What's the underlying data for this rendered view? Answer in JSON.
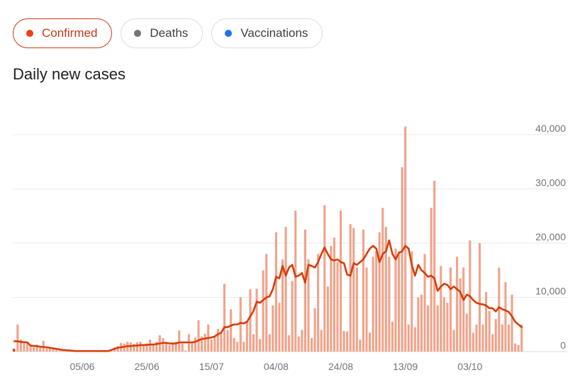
{
  "tabs": [
    {
      "label": "Confirmed",
      "dot_color": "#e8430f",
      "active": true
    },
    {
      "label": "Deaths",
      "dot_color": "#757575",
      "active": false
    },
    {
      "label": "Vaccinations",
      "dot_color": "#1a73e8",
      "active": false
    }
  ],
  "chart_data": {
    "type": "bar",
    "title": "Daily new cases",
    "x_tick_labels": [
      "05/06",
      "25/06",
      "15/07",
      "04/08",
      "24/08",
      "13/09",
      "03/10"
    ],
    "y_ticks": [
      0,
      10000,
      20000,
      30000,
      40000
    ],
    "y_tick_labels": [
      "0",
      "10,000",
      "20,000",
      "30,000",
      "40,000"
    ],
    "ylim": [
      0,
      40000
    ],
    "grid": true,
    "bar_color": "#f0a38a",
    "line_color": "#d73d0a",
    "series": [
      {
        "kind": "bar",
        "values": [
          400,
          5000,
          2200,
          1800,
          1700,
          1200,
          800,
          1300,
          700,
          2000,
          600,
          800,
          500,
          300,
          200,
          100,
          100,
          100,
          50,
          50,
          50,
          50,
          50,
          50,
          50,
          50,
          50,
          50,
          50,
          200,
          300,
          800,
          1000,
          1600,
          1500,
          1800,
          1700,
          1400,
          1700,
          1800,
          1200,
          1500,
          2200,
          1200,
          1800,
          3000,
          2500,
          1800,
          1200,
          1600,
          1800,
          3900,
          1500,
          200,
          3200,
          1700,
          2600,
          5800,
          2800,
          3300,
          5000,
          2200,
          2800,
          4200,
          3500,
          12500,
          4000,
          7800,
          2500,
          1800,
          10000,
          1800,
          5500,
          11500,
          3200,
          11600,
          2300,
          15000,
          18000,
          3200,
          8500,
          22000,
          9000,
          17000,
          23000,
          3000,
          13000,
          26000,
          2800,
          4000,
          22500,
          17000,
          2500,
          8000,
          18000,
          4000,
          27000,
          12000,
          19500,
          21000,
          16500,
          26000,
          3800,
          3700,
          23500,
          22800,
          15500,
          2200,
          22500,
          15500,
          3500,
          17500,
          18500,
          22000,
          26500,
          23000,
          17500,
          5500,
          19000,
          18500,
          34000,
          41500,
          5000,
          18500,
          4500,
          10000,
          10500,
          18000,
          8500,
          26500,
          31500,
          8500,
          15800,
          10000,
          9000,
          15500,
          4000,
          17500,
          13500,
          15500,
          7000,
          20500,
          3500,
          5000,
          20000,
          5000,
          11000,
          7500,
          3200,
          6000,
          15500,
          5000,
          12800,
          5000,
          10500,
          1500,
          1200,
          5000
        ]
      },
      {
        "kind": "line",
        "values": [
          1900,
          1900,
          1800,
          1750,
          1700,
          1100,
          1050,
          1000,
          900,
          850,
          800,
          700,
          600,
          500,
          400,
          300,
          250,
          200,
          150,
          100,
          100,
          100,
          100,
          100,
          100,
          100,
          100,
          100,
          100,
          100,
          300,
          500,
          700,
          800,
          900,
          1000,
          1000,
          1100,
          1100,
          1200,
          1200,
          1250,
          1300,
          1300,
          1400,
          1500,
          1600,
          1600,
          1500,
          1500,
          1500,
          1700,
          1700,
          1700,
          1700,
          1700,
          1800,
          2100,
          2300,
          2400,
          2500,
          2600,
          2800,
          3200,
          3500,
          4500,
          4500,
          4800,
          5000,
          5000,
          5300,
          5200,
          5500,
          6500,
          7500,
          9200,
          9000,
          9500,
          10000,
          10200,
          11500,
          13800,
          13500,
          15800,
          14000,
          15500,
          16000,
          13800,
          14000,
          14500,
          12700,
          16000,
          15800,
          15500,
          16500,
          18000,
          19200,
          18000,
          17000,
          16800,
          17000,
          16500,
          16300,
          14200,
          14000,
          16300,
          16000,
          16500,
          17000,
          18000,
          19000,
          19500,
          19000,
          16500,
          18000,
          18500,
          20500,
          18000,
          17000,
          18200,
          18500,
          19500,
          19000,
          16000,
          14000,
          16000,
          15000,
          14500,
          13800,
          14000,
          13500,
          11200,
          12000,
          12500,
          12300,
          11500,
          12000,
          11500,
          11000,
          9500,
          10500,
          10200,
          9500,
          9000,
          8800,
          8700,
          8500,
          8000,
          8000,
          7400,
          8200,
          7800,
          7600,
          7300,
          6500,
          5500,
          5000,
          4500
        ]
      }
    ]
  }
}
